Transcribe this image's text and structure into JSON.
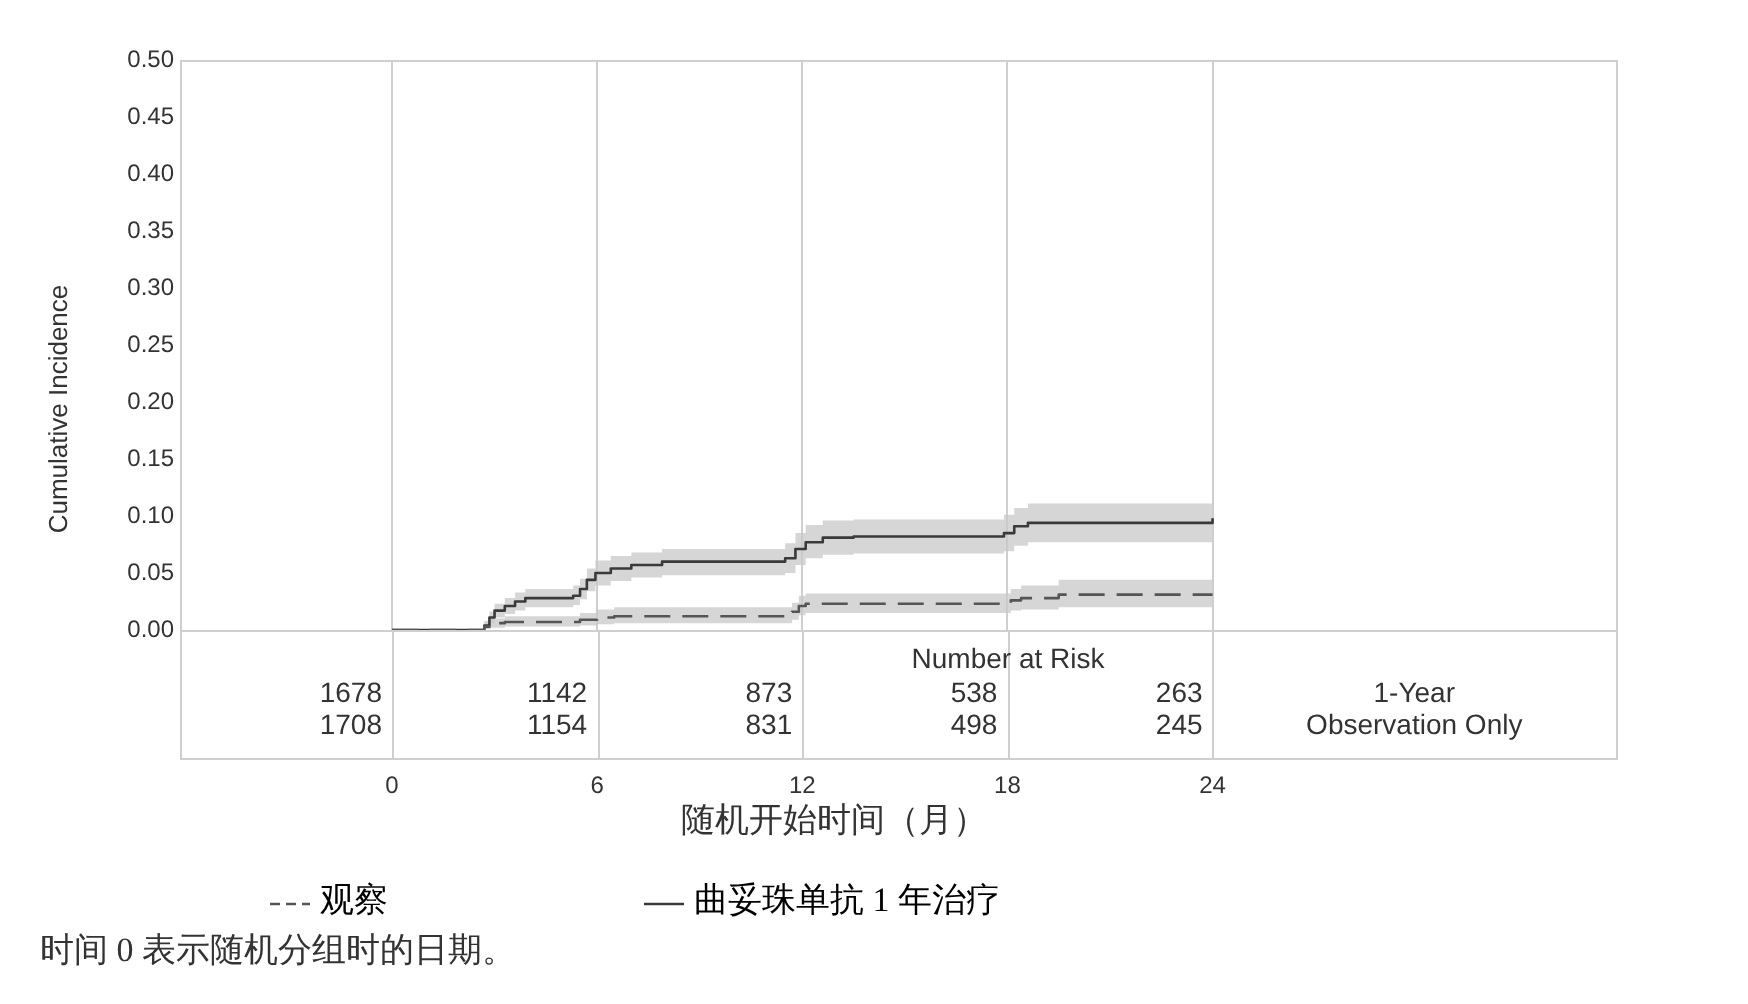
{
  "chart_data": {
    "type": "step",
    "xlabel": "随机开始时间（月）",
    "ylabel": "Cumulative Incidence",
    "xlim": [
      -6.2,
      35.8
    ],
    "xticks": [
      0,
      6,
      12,
      18,
      24
    ],
    "ylim": [
      0,
      0.5
    ],
    "yticks": [
      {
        "value": 0,
        "label": "0.00"
      },
      {
        "value": 0.05,
        "label": "0.05"
      },
      {
        "value": 0.1,
        "label": "0.10"
      },
      {
        "value": 0.15,
        "label": "0.15"
      },
      {
        "value": 0.2,
        "label": "0.20"
      },
      {
        "value": 0.25,
        "label": "0.25"
      },
      {
        "value": 0.3,
        "label": "0.30"
      },
      {
        "value": 0.35,
        "label": "0.35"
      },
      {
        "value": 0.4,
        "label": "0.40"
      },
      {
        "value": 0.45,
        "label": "0.45"
      },
      {
        "value": 0.5,
        "label": "0.50"
      }
    ],
    "grid": "x",
    "legend": "bottom",
    "series": [
      {
        "name": "观察",
        "color": "#555555",
        "line_style": "dashed",
        "x": [
          0,
          2.7,
          2.9,
          3.3,
          5.5,
          6.0,
          6.5,
          11.7,
          11.9,
          12.1,
          18.1,
          18.4,
          19.5,
          24
        ],
        "values": [
          0,
          0.003,
          0.006,
          0.007,
          0.009,
          0.011,
          0.012,
          0.016,
          0.021,
          0.023,
          0.026,
          0.028,
          0.031,
          0.031
        ],
        "lower": [
          0,
          0.001,
          0.002,
          0.003,
          0.004,
          0.005,
          0.006,
          0.009,
          0.013,
          0.015,
          0.017,
          0.018,
          0.02,
          0.02
        ],
        "upper": [
          0,
          0.006,
          0.01,
          0.012,
          0.015,
          0.018,
          0.02,
          0.024,
          0.03,
          0.032,
          0.036,
          0.039,
          0.044,
          0.044
        ]
      },
      {
        "name": "曲妥珠单抗 1 年治疗",
        "color": "#3a3a3a",
        "line_style": "solid",
        "x": [
          0,
          2.7,
          2.85,
          3.0,
          3.3,
          3.6,
          3.9,
          5.3,
          5.5,
          5.7,
          5.95,
          6.4,
          7.0,
          7.9,
          11.5,
          11.8,
          12.1,
          12.6,
          13.5,
          17.9,
          18.2,
          18.6,
          24
        ],
        "values": [
          0,
          0.004,
          0.011,
          0.017,
          0.021,
          0.025,
          0.028,
          0.03,
          0.036,
          0.044,
          0.05,
          0.054,
          0.057,
          0.06,
          0.063,
          0.071,
          0.077,
          0.081,
          0.082,
          0.085,
          0.091,
          0.094,
          0.098
        ],
        "lower": [
          0,
          0.001,
          0.006,
          0.011,
          0.014,
          0.017,
          0.02,
          0.022,
          0.027,
          0.034,
          0.039,
          0.043,
          0.046,
          0.048,
          0.05,
          0.057,
          0.063,
          0.066,
          0.067,
          0.069,
          0.074,
          0.077,
          0.08
        ],
        "upper": [
          0,
          0.008,
          0.016,
          0.023,
          0.028,
          0.033,
          0.036,
          0.039,
          0.045,
          0.054,
          0.061,
          0.065,
          0.068,
          0.071,
          0.076,
          0.085,
          0.092,
          0.096,
          0.097,
          0.101,
          0.107,
          0.111,
          0.115
        ]
      }
    ],
    "annotations": [
      "Number at Risk",
      "1678",
      "1142",
      "873",
      "538",
      "263",
      "1-Year",
      "1708",
      "1154",
      "831",
      "498",
      "245",
      "Observation Only",
      "时间 0 表示随机分组时的日期。"
    ]
  }
}
